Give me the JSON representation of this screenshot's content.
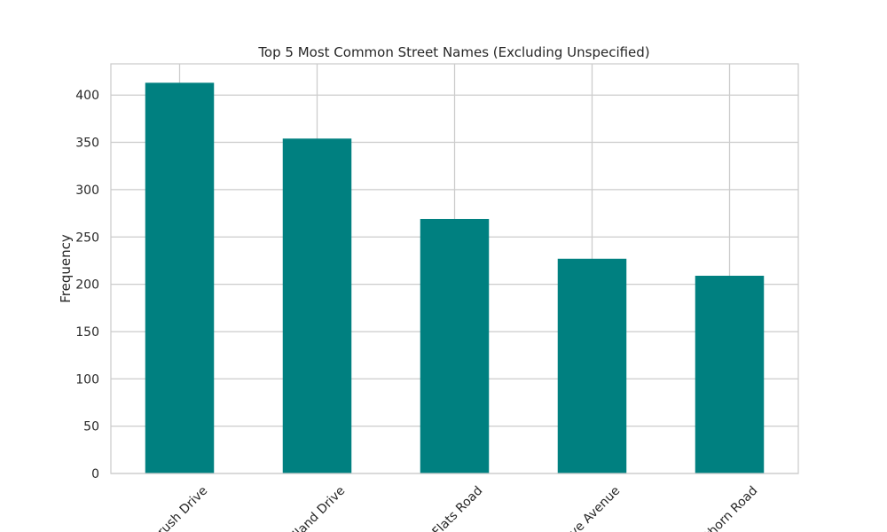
{
  "chart_data": {
    "type": "bar",
    "title": "Top 5 Most Common Street Names (Excluding Unspecified)",
    "xlabel": "",
    "ylabel": "Frequency",
    "categories": [
      "rush Drive",
      "dland Drive",
      "Flats Road",
      "ve Avenue",
      "thorn Road"
    ],
    "values": [
      413,
      354,
      269,
      227,
      209
    ],
    "ylim": [
      0,
      433
    ],
    "yticks": [
      0,
      50,
      100,
      150,
      200,
      250,
      300,
      350,
      400
    ],
    "grid": true,
    "legend": "none",
    "bar_color": "#008080",
    "grid_color": "#cccccc",
    "frame_color": "#cccccc"
  }
}
